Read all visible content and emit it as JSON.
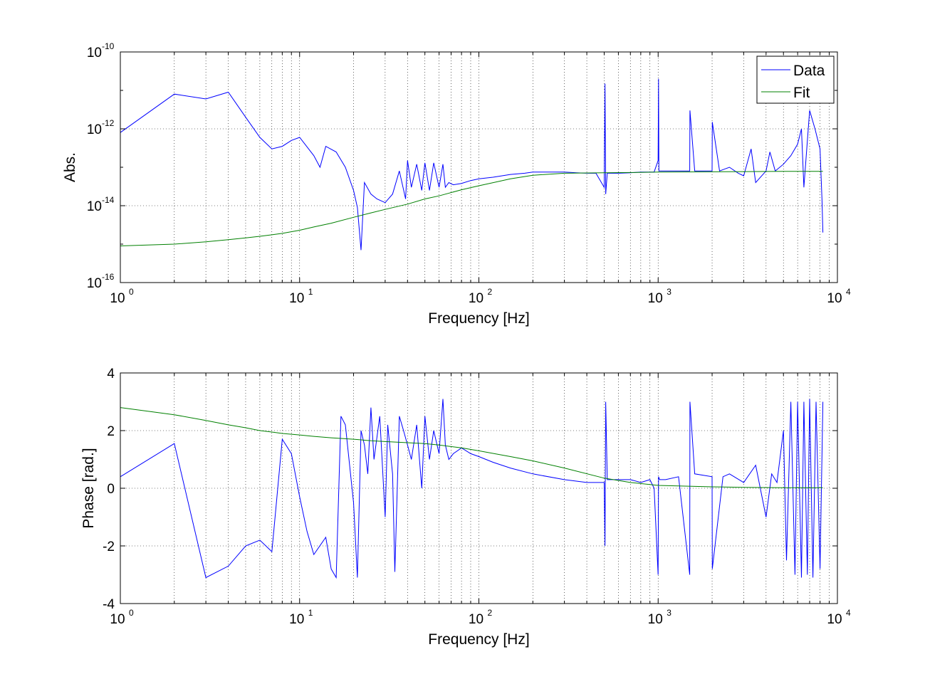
{
  "chart_data": [
    {
      "type": "line",
      "x_scale": "log",
      "y_scale": "log",
      "xlim": [
        1,
        10000
      ],
      "ylim": [
        1e-16,
        1e-10
      ],
      "xlabel": "Frequency [Hz]",
      "ylabel": "Abs.",
      "grid": true,
      "legend_position": "top-right",
      "x_ticks": [
        {
          "base": "10",
          "exp": "0"
        },
        {
          "base": "10",
          "exp": "1"
        },
        {
          "base": "10",
          "exp": "2"
        },
        {
          "base": "10",
          "exp": "3"
        },
        {
          "base": "10",
          "exp": "4"
        }
      ],
      "y_ticks": [
        {
          "base": "10",
          "exp": "-10"
        },
        {
          "base": "10",
          "exp": "-12"
        },
        {
          "base": "10",
          "exp": "-14"
        },
        {
          "base": "10",
          "exp": "-16"
        }
      ],
      "series": [
        {
          "name": "Data",
          "color": "#0000ff",
          "x": [
            1,
            2,
            3,
            4,
            5,
            6,
            7,
            8,
            9,
            10,
            12,
            13,
            14,
            16,
            18,
            20,
            21,
            22,
            23,
            25,
            27,
            30,
            33,
            36,
            39,
            40,
            42,
            45,
            48,
            50,
            53,
            56,
            60,
            63,
            65,
            68,
            72,
            80,
            90,
            100,
            120,
            150,
            180,
            200,
            250,
            300,
            350,
            400,
            450,
            500,
            505,
            510,
            520,
            600,
            700,
            800,
            900,
            950,
            1000,
            1005,
            1010,
            1100,
            1200,
            1400,
            1500,
            1505,
            1600,
            1800,
            2000,
            2005,
            2200,
            2500,
            2800,
            3000,
            3300,
            3500,
            4000,
            4200,
            4500,
            5000,
            5500,
            6000,
            6300,
            6500,
            7000,
            7500,
            8000,
            8200,
            8300
          ],
          "y": [
            8e-13,
            8e-12,
            6e-12,
            9e-12,
            2e-12,
            6e-13,
            3e-13,
            3.5e-13,
            5e-13,
            6e-13,
            2e-13,
            1e-13,
            3.5e-13,
            2.5e-13,
            1e-13,
            2.5e-14,
            9e-15,
            7e-16,
            4e-14,
            2e-14,
            1.5e-14,
            1.2e-14,
            2e-14,
            8e-14,
            1.5e-14,
            1.5e-13,
            3e-14,
            1.2e-13,
            2.5e-14,
            1.3e-13,
            2.5e-14,
            1.3e-13,
            3e-14,
            1.2e-13,
            3e-14,
            4e-14,
            3.5e-14,
            3.8e-14,
            4.5e-14,
            5e-14,
            5.5e-14,
            6.5e-14,
            7e-14,
            7.5e-14,
            7.5e-14,
            7.5e-14,
            7.2e-14,
            7e-14,
            7e-14,
            3e-14,
            1.5e-11,
            2e-14,
            7e-14,
            7e-14,
            7.2e-14,
            7.5e-14,
            7.5e-14,
            7.5e-14,
            1.5e-13,
            2e-11,
            8e-14,
            8e-14,
            8e-14,
            8e-14,
            8e-14,
            3e-12,
            8e-14,
            8e-14,
            8e-14,
            1.5e-12,
            8e-14,
            1e-13,
            7e-14,
            6e-14,
            3e-13,
            4e-14,
            8e-14,
            2.5e-13,
            8e-14,
            1.2e-13,
            2e-13,
            4e-13,
            1e-12,
            3e-14,
            3e-12,
            1e-12,
            3e-13,
            1.5e-14,
            2e-15
          ]
        },
        {
          "name": "Fit",
          "color": "#008000",
          "x": [
            1,
            2,
            3,
            4,
            5,
            6,
            7,
            8,
            10,
            12,
            15,
            20,
            25,
            30,
            40,
            50,
            60,
            80,
            100,
            150,
            200,
            300,
            500,
            700,
            1000,
            2000,
            3000,
            5000,
            8300
          ],
          "y": [
            9e-16,
            1e-15,
            1.15e-15,
            1.3e-15,
            1.45e-15,
            1.6e-15,
            1.75e-15,
            1.9e-15,
            2.3e-15,
            2.8e-15,
            3.5e-15,
            5e-15,
            6.5e-15,
            8e-15,
            1.1e-14,
            1.5e-14,
            1.8e-14,
            2.6e-14,
            3.3e-14,
            5e-14,
            6.2e-14,
            7e-14,
            7.2e-14,
            7.3e-14,
            7.5e-14,
            7.6e-14,
            7.7e-14,
            7.8e-14,
            7.8e-14
          ]
        }
      ]
    },
    {
      "type": "line",
      "x_scale": "log",
      "y_scale": "linear",
      "xlim": [
        1,
        10000
      ],
      "ylim": [
        -4,
        4
      ],
      "xlabel": "Frequency [Hz]",
      "ylabel": "Phase [rad.]",
      "grid": true,
      "x_ticks": [
        {
          "base": "10",
          "exp": "0"
        },
        {
          "base": "10",
          "exp": "1"
        },
        {
          "base": "10",
          "exp": "2"
        },
        {
          "base": "10",
          "exp": "3"
        },
        {
          "base": "10",
          "exp": "4"
        }
      ],
      "y_ticks": [
        "4",
        "2",
        "0",
        "-2",
        "-4"
      ],
      "series": [
        {
          "color": "#0000ff",
          "x": [
            1,
            2,
            3,
            4,
            5,
            6,
            7,
            8,
            9,
            10,
            11,
            12,
            14,
            15,
            16,
            17,
            18,
            20,
            21,
            22,
            23,
            24,
            25,
            26,
            28,
            30,
            31,
            33,
            34,
            36,
            38,
            40,
            42,
            45,
            48,
            50,
            53,
            56,
            60,
            63,
            65,
            68,
            72,
            80,
            90,
            100,
            120,
            150,
            200,
            300,
            400,
            480,
            500,
            505,
            510,
            520,
            550,
            600,
            700,
            800,
            900,
            950,
            1000,
            1005,
            1020,
            1100,
            1300,
            1500,
            1505,
            1600,
            2000,
            2005,
            2300,
            2500,
            3000,
            3500,
            4000,
            4300,
            4600,
            5000,
            5200,
            5500,
            5800,
            6000,
            6300,
            6500,
            6800,
            7000,
            7300,
            7600,
            8000,
            8300
          ],
          "y": [
            0.4,
            1.55,
            -3.1,
            -2.7,
            -2.0,
            -1.8,
            -2.2,
            1.7,
            1.2,
            -0.3,
            -1.5,
            -2.3,
            -1.7,
            -2.8,
            -3.1,
            2.5,
            2.2,
            -0.5,
            -3.1,
            2.0,
            1.5,
            0.5,
            2.8,
            1.0,
            2.5,
            -1.0,
            2.2,
            0.5,
            -2.9,
            2.5,
            2.0,
            1.5,
            1.0,
            2.2,
            0.0,
            2.5,
            1.0,
            2.0,
            1.2,
            3.1,
            1.5,
            1.0,
            1.2,
            1.4,
            1.2,
            1.1,
            0.9,
            0.7,
            0.5,
            0.3,
            0.2,
            0.2,
            0.2,
            -2.0,
            3.0,
            0.3,
            0.3,
            0.3,
            0.3,
            0.2,
            0.3,
            0.0,
            -3.0,
            0.4,
            0.3,
            0.3,
            0.4,
            -3.0,
            3.0,
            0.5,
            0.4,
            -2.8,
            0.4,
            0.5,
            0.2,
            0.8,
            -1.0,
            0.5,
            0.2,
            2.0,
            -2.5,
            3.0,
            -3.0,
            3.0,
            -3.1,
            3.0,
            -3.0,
            3.1,
            -3.1,
            3.0,
            -2.8,
            3.0
          ]
        },
        {
          "color": "#008000",
          "x": [
            1,
            2,
            3,
            4,
            5,
            6,
            7,
            8,
            10,
            12,
            15,
            20,
            25,
            30,
            40,
            50,
            60,
            80,
            100,
            150,
            200,
            300,
            500,
            700,
            1000,
            2000,
            3000,
            5000,
            8300
          ],
          "y": [
            2.8,
            2.55,
            2.35,
            2.2,
            2.1,
            2.0,
            1.95,
            1.9,
            1.85,
            1.8,
            1.75,
            1.7,
            1.65,
            1.62,
            1.58,
            1.55,
            1.5,
            1.4,
            1.3,
            1.1,
            0.95,
            0.7,
            0.35,
            0.2,
            0.1,
            0.05,
            0.03,
            0.02,
            0.02
          ]
        }
      ]
    }
  ]
}
